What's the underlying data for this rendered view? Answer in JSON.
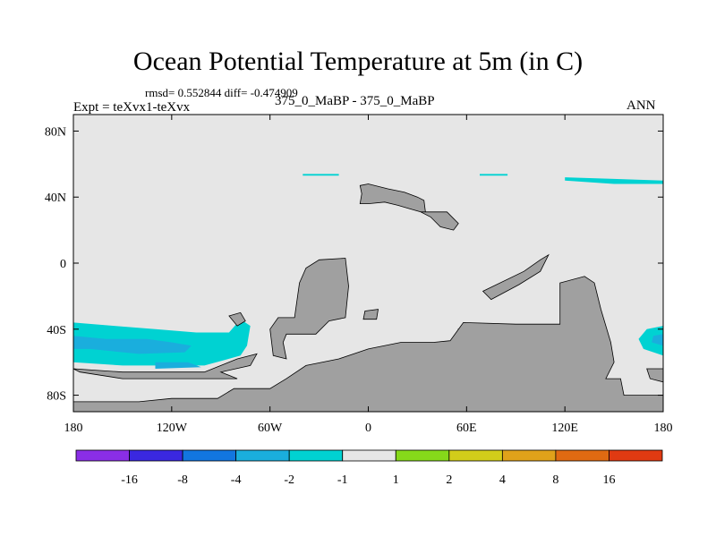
{
  "header": {
    "title": "Ocean Potential Temperature at 5m (in C)",
    "stats": "rmsd= 0.552844 diff= -0.474909",
    "expt": "Expt = teXvx1-teXvx",
    "subtitle": "375_0_MaBP - 375_0_MaBP",
    "season": "ANN"
  },
  "chart_data": {
    "type": "heatmap",
    "title": "Ocean Potential Temperature at 5m (in C)",
    "xlim": [
      -180,
      180
    ],
    "ylim": [
      -90,
      90
    ],
    "x_ticks": [
      {
        "value": -180,
        "label": "180"
      },
      {
        "value": -120,
        "label": "120W"
      },
      {
        "value": -60,
        "label": "60W"
      },
      {
        "value": 0,
        "label": "0"
      },
      {
        "value": 60,
        "label": "60E"
      },
      {
        "value": 120,
        "label": "120E"
      },
      {
        "value": 180,
        "label": "180"
      }
    ],
    "y_ticks": [
      {
        "value": 80,
        "label": "80N"
      },
      {
        "value": 40,
        "label": "40N"
      },
      {
        "value": 0,
        "label": "0"
      },
      {
        "value": -40,
        "label": "40S"
      },
      {
        "value": -80,
        "label": "80S"
      }
    ],
    "background_value_color": "#e6e6e6",
    "land_color": "#a0a0a0",
    "land_polygons": [
      [
        [
          -60,
          -40
        ],
        [
          -55,
          -33
        ],
        [
          -45,
          -33
        ],
        [
          -42,
          -12
        ],
        [
          -38,
          -3
        ],
        [
          -30,
          2
        ],
        [
          -14,
          3
        ],
        [
          -12,
          -14
        ],
        [
          -14,
          -33
        ],
        [
          -24,
          -35
        ],
        [
          -32,
          -43
        ],
        [
          -50,
          -43
        ],
        [
          -52,
          -48
        ],
        [
          -50,
          -58
        ],
        [
          -58,
          -56
        ]
      ],
      [
        [
          -5,
          47
        ],
        [
          0,
          48
        ],
        [
          12,
          45
        ],
        [
          22,
          43
        ],
        [
          30,
          40
        ],
        [
          34,
          38
        ],
        [
          35,
          30
        ],
        [
          32,
          31
        ],
        [
          25,
          33
        ],
        [
          18,
          35
        ],
        [
          10,
          37
        ],
        [
          0,
          36
        ],
        [
          -5,
          36
        ],
        [
          -4,
          42
        ]
      ],
      [
        [
          32,
          31
        ],
        [
          48,
          31
        ],
        [
          55,
          24
        ],
        [
          52,
          20
        ],
        [
          44,
          22
        ],
        [
          38,
          28
        ],
        [
          34,
          30
        ]
      ],
      [
        [
          70,
          -17
        ],
        [
          95,
          -5
        ],
        [
          105,
          2
        ],
        [
          110,
          5
        ],
        [
          105,
          -5
        ],
        [
          92,
          -13
        ],
        [
          75,
          -22
        ]
      ],
      [
        [
          -85,
          -32
        ],
        [
          -78,
          -30
        ],
        [
          -75,
          -35
        ],
        [
          -80,
          -38
        ]
      ],
      [
        [
          -2,
          -29
        ],
        [
          6,
          -28
        ],
        [
          5,
          -34
        ],
        [
          -3,
          -34
        ]
      ],
      [
        [
          55,
          -40
        ],
        [
          70,
          -39
        ],
        [
          75,
          -44
        ],
        [
          60,
          -45
        ]
      ],
      [
        [
          95,
          -42
        ],
        [
          110,
          -40
        ],
        [
          120,
          -45
        ],
        [
          102,
          -46
        ]
      ],
      [
        [
          117,
          -12
        ],
        [
          132,
          -8
        ],
        [
          138,
          -12
        ],
        [
          142,
          -28
        ],
        [
          148,
          -48
        ],
        [
          150,
          -60
        ],
        [
          145,
          -70
        ],
        [
          154,
          -70
        ],
        [
          156,
          -80
        ],
        [
          180,
          -80
        ],
        [
          180,
          -90
        ],
        [
          -180,
          -90
        ],
        [
          -180,
          -84
        ],
        [
          -140,
          -84
        ],
        [
          -120,
          -82
        ],
        [
          -92,
          -82
        ],
        [
          -82,
          -76
        ],
        [
          -60,
          -76
        ],
        [
          -50,
          -70
        ],
        [
          -38,
          -62
        ],
        [
          -18,
          -58
        ],
        [
          0,
          -52
        ],
        [
          20,
          -48
        ],
        [
          40,
          -48
        ],
        [
          50,
          -47
        ],
        [
          58,
          -36
        ],
        [
          90,
          -37
        ],
        [
          117,
          -37
        ]
      ],
      [
        [
          -180,
          -64
        ],
        [
          -150,
          -66
        ],
        [
          -120,
          -66
        ],
        [
          -100,
          -66
        ],
        [
          -80,
          -58
        ],
        [
          -68,
          -55
        ],
        [
          -72,
          -62
        ],
        [
          -90,
          -66
        ],
        [
          -80,
          -70
        ],
        [
          -120,
          -70
        ],
        [
          -150,
          -70
        ],
        [
          -176,
          -66
        ]
      ],
      [
        [
          170,
          -64
        ],
        [
          180,
          -64
        ],
        [
          180,
          -72
        ],
        [
          172,
          -70
        ]
      ]
    ],
    "anomaly_polygons": [
      {
        "level": "-2..-1",
        "color": "#00d2d2",
        "points": [
          [
            -180,
            -36
          ],
          [
            -155,
            -38
          ],
          [
            -130,
            -40
          ],
          [
            -105,
            -42
          ],
          [
            -85,
            -42
          ],
          [
            -78,
            -34
          ],
          [
            -72,
            -38
          ],
          [
            -74,
            -50
          ],
          [
            -78,
            -56
          ],
          [
            -100,
            -62
          ],
          [
            -150,
            -62
          ],
          [
            -180,
            -60
          ]
        ]
      },
      {
        "level": "-4..-2",
        "color": "#1aaedd",
        "points": [
          [
            -180,
            -44
          ],
          [
            -160,
            -46
          ],
          [
            -135,
            -46
          ],
          [
            -120,
            -48
          ],
          [
            -108,
            -50
          ],
          [
            -112,
            -54
          ],
          [
            -140,
            -55
          ],
          [
            -170,
            -52
          ],
          [
            -180,
            -52
          ]
        ]
      },
      {
        "level": "-4..-2",
        "color": "#1aaedd",
        "points": [
          [
            -130,
            -60
          ],
          [
            -110,
            -60
          ],
          [
            -102,
            -63
          ],
          [
            -130,
            -64
          ]
        ]
      },
      {
        "level": "-2..-1",
        "color": "#00d2d2",
        "points": [
          [
            170,
            -40
          ],
          [
            180,
            -38
          ],
          [
            180,
            -56
          ],
          [
            168,
            -52
          ],
          [
            165,
            -46
          ]
        ]
      },
      {
        "level": "-4..-2",
        "color": "#1aaedd",
        "points": [
          [
            174,
            -44
          ],
          [
            180,
            -43
          ],
          [
            180,
            -50
          ],
          [
            173,
            -48
          ]
        ]
      },
      {
        "level": "-2..-1",
        "color": "#00d2d2",
        "points": [
          [
            120,
            52
          ],
          [
            150,
            51
          ],
          [
            180,
            50
          ],
          [
            180,
            48
          ],
          [
            150,
            48
          ],
          [
            120,
            50
          ]
        ]
      },
      {
        "level": "-2..-1",
        "color": "#00d2d2",
        "points": [
          [
            -40,
            54
          ],
          [
            -18,
            54
          ],
          [
            -18,
            53
          ],
          [
            -40,
            53
          ]
        ]
      },
      {
        "level": "-2..-1",
        "color": "#00d2d2",
        "points": [
          [
            68,
            54
          ],
          [
            85,
            54
          ],
          [
            85,
            53
          ],
          [
            68,
            53
          ]
        ]
      }
    ],
    "colorbar": {
      "colors": [
        "#8a2ee6",
        "#3a28e0",
        "#1276e0",
        "#1aaedd",
        "#00d2d2",
        "#e6e6e6",
        "#86d91a",
        "#d2cd1a",
        "#e0a21a",
        "#e06a12",
        "#e03a12"
      ],
      "labels": [
        "-16",
        "-8",
        "-4",
        "-2",
        "-1",
        "1",
        "2",
        "4",
        "8",
        "16"
      ]
    }
  }
}
